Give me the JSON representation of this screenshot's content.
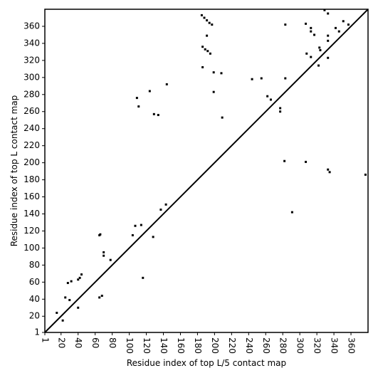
{
  "chart_data": {
    "type": "scatter",
    "x_label": "Residue index of top L/5 contact map",
    "y_label": "Residue index of top L contact map",
    "xlim": [
      1,
      380
    ],
    "ylim": [
      1,
      380
    ],
    "xticks": [
      1,
      20,
      40,
      60,
      80,
      100,
      120,
      140,
      160,
      180,
      200,
      220,
      240,
      260,
      280,
      300,
      320,
      340,
      360
    ],
    "yticks": [
      1,
      20,
      40,
      60,
      80,
      100,
      120,
      140,
      160,
      180,
      200,
      220,
      240,
      260,
      280,
      300,
      320,
      340,
      360
    ],
    "diagonal": true,
    "diagonal_color": "#000000",
    "series": [
      {
        "color": "#000000",
        "x": [
          65,
          66,
          185,
          188,
          191,
          194,
          197,
          186,
          189,
          192,
          195,
          144,
          186,
          191,
          199,
          199,
          208,
          209,
          244,
          255,
          262,
          266,
          277,
          277,
          283,
          283,
          307,
          313,
          313,
          317,
          323,
          324,
          333,
          333,
          333,
          342,
          346,
          329,
          333,
          351,
          357,
          322,
          313,
          308,
          124,
          129,
          134,
          109,
          111,
          333,
          335,
          307,
          282,
          377,
          291,
          42,
          44,
          40,
          65,
          68,
          28,
          32,
          15,
          40,
          107,
          114,
          104,
          128,
          137,
          143,
          70,
          70,
          78,
          25,
          30,
          22,
          116
        ],
        "values": [
          115,
          116,
          373,
          370,
          367,
          364,
          362,
          336,
          333,
          331,
          328,
          292,
          312,
          349,
          306,
          283,
          305,
          253,
          298,
          299,
          278,
          274,
          264,
          260,
          362,
          299,
          363,
          358,
          354,
          350,
          335,
          332,
          323,
          349,
          343,
          358,
          354,
          379,
          375,
          366,
          362,
          314,
          324,
          328,
          284,
          257,
          256,
          276,
          266,
          192,
          189,
          201,
          202,
          186,
          142,
          65,
          69,
          63,
          42,
          44,
          59,
          61,
          24,
          30,
          126,
          127,
          115,
          113,
          145,
          151,
          95,
          91,
          86,
          42,
          39,
          15,
          65
        ]
      }
    ]
  }
}
